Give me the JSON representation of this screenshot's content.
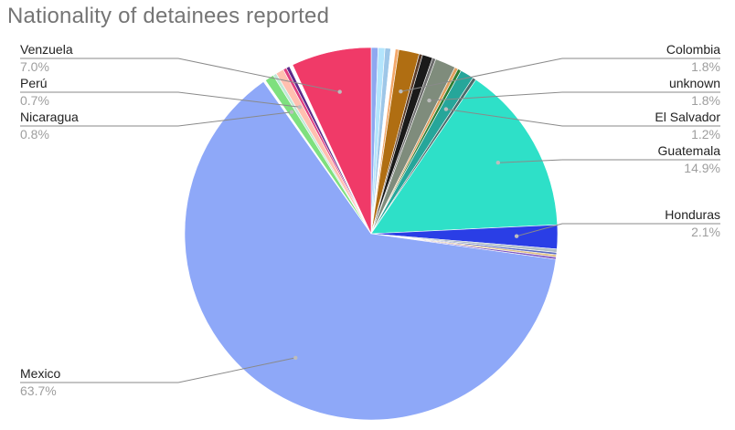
{
  "chart_data": {
    "type": "pie",
    "title": "Nationality of detainees reported",
    "slices": [
      {
        "name": "",
        "value": 0.6,
        "color": "#8ea8f0"
      },
      {
        "name": "",
        "value": 0.6,
        "color": "#b3e5fc"
      },
      {
        "name": "",
        "value": 0.5,
        "color": "#9ec7e8"
      },
      {
        "name": "",
        "value": 0.4,
        "color": "#ffffff"
      },
      {
        "name": "",
        "value": 0.3,
        "color": "#f4a86a"
      },
      {
        "name": "Colombia",
        "value": 1.8,
        "color": "#b06e12"
      },
      {
        "name": "",
        "value": 0.3,
        "color": "#5a3c2a"
      },
      {
        "name": "",
        "value": 0.9,
        "color": "#1a1a1a"
      },
      {
        "name": "",
        "value": 0.3,
        "color": "#6d6d6d"
      },
      {
        "name": "unknown",
        "value": 1.8,
        "color": "#7f8c7c"
      },
      {
        "name": "",
        "value": 0.3,
        "color": "#e0a060"
      },
      {
        "name": "",
        "value": 0.3,
        "color": "#2e7d32"
      },
      {
        "name": "El Salvador",
        "value": 1.2,
        "color": "#26a69a"
      },
      {
        "name": "",
        "value": 0.3,
        "color": "#4a6b6b"
      },
      {
        "name": "Guatemala",
        "value": 14.9,
        "color": "#2ee0c8"
      },
      {
        "name": "Honduras",
        "value": 2.1,
        "color": "#2a3ee6"
      },
      {
        "name": "",
        "value": 0.3,
        "color": "#b0bec5"
      },
      {
        "name": "",
        "value": 0.2,
        "color": "#5c6bc0"
      },
      {
        "name": "",
        "value": 0.2,
        "color": "#e0c080"
      },
      {
        "name": "",
        "value": 0.2,
        "color": "#7e57c2"
      },
      {
        "name": "Mexico",
        "value": 63.7,
        "color": "#8ea8f8"
      },
      {
        "name": "",
        "value": 0.2,
        "color": "#ffffff"
      },
      {
        "name": "Nicaragua",
        "value": 0.8,
        "color": "#7ee07e"
      },
      {
        "name": "",
        "value": 0.3,
        "color": "#c0e8d8"
      },
      {
        "name": "Perú",
        "value": 0.7,
        "color": "#ffc0b0"
      },
      {
        "name": "",
        "value": 0.3,
        "color": "#e04080"
      },
      {
        "name": "",
        "value": 0.3,
        "color": "#5c2a8a"
      },
      {
        "name": "",
        "value": 0.3,
        "color": "#ffffff"
      },
      {
        "name": "Venzuela",
        "value": 7.0,
        "color": "#f03a68"
      }
    ],
    "labels": [
      {
        "name": "Venzuela",
        "pct": "7.0%",
        "side": "left",
        "row": 0
      },
      {
        "name": "Perú",
        "pct": "0.7%",
        "side": "left",
        "row": 1
      },
      {
        "name": "Nicaragua",
        "pct": "0.8%",
        "side": "left",
        "row": 2
      },
      {
        "name": "Mexico",
        "pct": "63.7%",
        "side": "left",
        "row": 3
      },
      {
        "name": "Colombia",
        "pct": "1.8%",
        "side": "right",
        "row": 0
      },
      {
        "name": "unknown",
        "pct": "1.8%",
        "side": "right",
        "row": 1
      },
      {
        "name": "El Salvador",
        "pct": "1.2%",
        "side": "right",
        "row": 2
      },
      {
        "name": "Guatemala",
        "pct": "14.9%",
        "side": "right",
        "row": 3
      },
      {
        "name": "Honduras",
        "pct": "2.1%",
        "side": "right",
        "row": 4
      }
    ],
    "legend": "none"
  }
}
